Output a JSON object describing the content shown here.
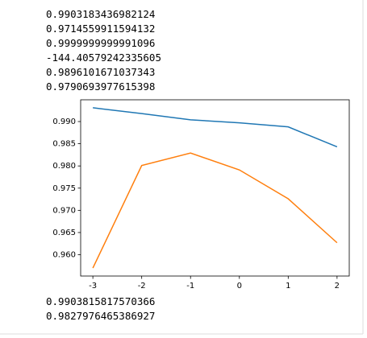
{
  "outputs_before": [
    "0.9903183436982124",
    "0.9714559911594132",
    "0.9999999999991096",
    "-144.40579242335605",
    "0.9896101671037343",
    "0.9790693977615398"
  ],
  "chart_data": {
    "type": "line",
    "x": [
      -3,
      -2,
      -1,
      0,
      1,
      2
    ],
    "series": [
      {
        "color": "#1f77b4",
        "values": [
          0.9931,
          0.9918,
          0.9904,
          0.9897,
          0.9888,
          0.9843
        ]
      },
      {
        "color": "#ff7f0e",
        "values": [
          0.957,
          0.9801,
          0.9829,
          0.9791,
          0.9726,
          0.9627
        ]
      }
    ],
    "xlim": [
      -3.25,
      2.25
    ],
    "xticks": [
      -3,
      -2,
      -1,
      0,
      1,
      2
    ],
    "ylim": [
      0.9552,
      0.9949
    ],
    "yticks": [
      {
        "value": 0.96,
        "label": "0.960"
      },
      0.965,
      {
        "value": 0.97,
        "label": "0.970"
      },
      0.975,
      {
        "value": 0.98,
        "label": "0.980"
      },
      0.985,
      {
        "value": 0.99,
        "label": "0.990"
      }
    ]
  },
  "outputs_after": [
    "0.9903815817570366",
    "0.9827976465386927"
  ]
}
